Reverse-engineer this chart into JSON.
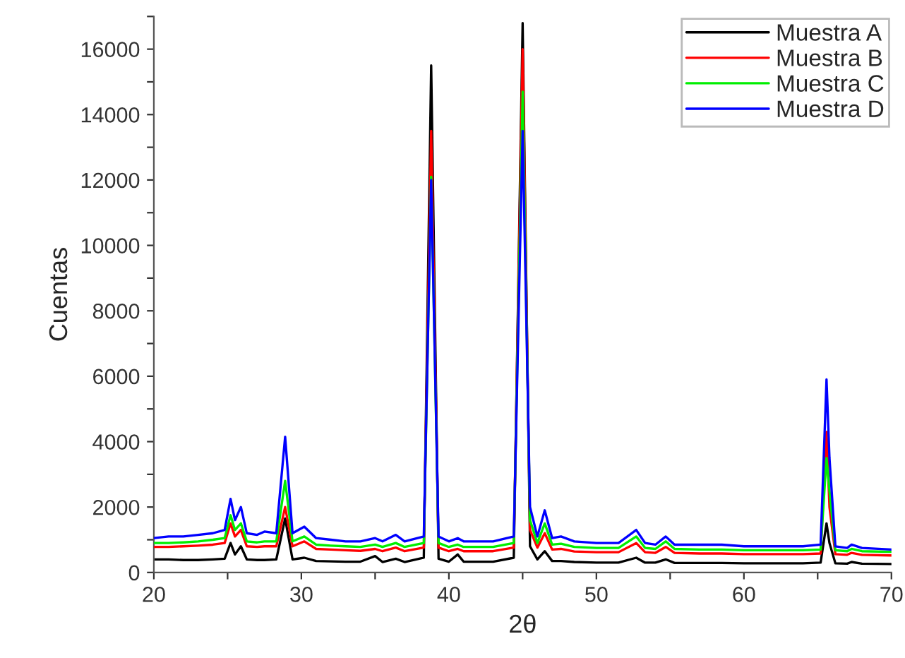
{
  "chart_data": {
    "type": "line",
    "xlabel": "2θ",
    "ylabel": "Cuentas",
    "legend": "top right",
    "grid": false,
    "line_style": "solid",
    "x": [
      20,
      21,
      22,
      23,
      24,
      24.8,
      25.2,
      25.5,
      25.9,
      26.3,
      27,
      27.5,
      28.3,
      28.9,
      29.4,
      30.2,
      31,
      32,
      33,
      34,
      35,
      35.5,
      36.4,
      37,
      38.3,
      38.8,
      39.3,
      40,
      40.6,
      41,
      42,
      43,
      44.4,
      45.0,
      45.5,
      46,
      46.5,
      47,
      47.6,
      48.5,
      50,
      51.5,
      52.7,
      53.3,
      54,
      54.7,
      55.3,
      57,
      58.5,
      60,
      62,
      64,
      65.2,
      65.6,
      65.8,
      66.2,
      67,
      67.3,
      68,
      70
    ],
    "xlim": [
      20,
      70
    ],
    "xticks": [
      20,
      {
        "value": 25,
        "label": null
      },
      30,
      {
        "value": 35,
        "label": null
      },
      40,
      {
        "value": 45,
        "label": null
      },
      50,
      {
        "value": 55,
        "label": null
      },
      60,
      {
        "value": 65,
        "label": null
      },
      70
    ],
    "ylim": [
      0,
      17000
    ],
    "yticks": [
      0,
      {
        "value": 1000,
        "label": null
      },
      2000,
      {
        "value": 3000,
        "label": null
      },
      4000,
      {
        "value": 5000,
        "label": null
      },
      6000,
      {
        "value": 7000,
        "label": null
      },
      8000,
      {
        "value": 9000,
        "label": null
      },
      10000,
      {
        "value": 11000,
        "label": null
      },
      12000,
      {
        "value": 13000,
        "label": null
      },
      14000,
      {
        "value": 15000,
        "label": null
      },
      16000,
      {
        "value": 17000,
        "label": null
      }
    ],
    "series": [
      {
        "name": "Muestra A",
        "color": "#000000",
        "values": [
          400,
          400,
          380,
          380,
          400,
          420,
          900,
          550,
          800,
          400,
          380,
          380,
          400,
          1650,
          400,
          450,
          350,
          340,
          330,
          330,
          500,
          320,
          420,
          320,
          450,
          15500,
          420,
          330,
          550,
          330,
          330,
          330,
          450,
          16800,
          800,
          400,
          650,
          350,
          350,
          320,
          300,
          300,
          450,
          300,
          300,
          400,
          290,
          290,
          290,
          280,
          280,
          280,
          300,
          1500,
          900,
          280,
          270,
          320,
          270,
          260
        ]
      },
      {
        "name": "Muestra B",
        "color": "#ff0000",
        "values": [
          780,
          780,
          800,
          820,
          850,
          900,
          1500,
          1100,
          1300,
          800,
          780,
          800,
          800,
          2000,
          800,
          950,
          720,
          700,
          680,
          660,
          720,
          650,
          760,
          650,
          760,
          13500,
          760,
          650,
          720,
          650,
          650,
          650,
          760,
          16000,
          1300,
          760,
          1200,
          700,
          720,
          640,
          620,
          620,
          900,
          620,
          600,
          780,
          600,
          580,
          580,
          560,
          560,
          560,
          580,
          4300,
          2000,
          560,
          540,
          600,
          540,
          520
        ]
      },
      {
        "name": "Muestra C",
        "color": "#00ee00",
        "values": [
          900,
          900,
          920,
          950,
          1000,
          1050,
          1750,
          1300,
          1500,
          950,
          920,
          950,
          950,
          2800,
          950,
          1100,
          850,
          820,
          800,
          780,
          850,
          780,
          900,
          780,
          900,
          12100,
          900,
          780,
          850,
          780,
          780,
          780,
          900,
          14700,
          1600,
          900,
          1500,
          850,
          880,
          780,
          750,
          750,
          1100,
          750,
          720,
          950,
          720,
          700,
          700,
          680,
          680,
          680,
          700,
          3500,
          2500,
          680,
          650,
          720,
          650,
          630
        ]
      },
      {
        "name": "Muestra D",
        "color": "#0000ff",
        "values": [
          1050,
          1100,
          1100,
          1150,
          1200,
          1300,
          2250,
          1600,
          2000,
          1200,
          1150,
          1250,
          1200,
          4150,
          1200,
          1400,
          1050,
          1000,
          950,
          950,
          1050,
          950,
          1150,
          950,
          1100,
          12000,
          1100,
          950,
          1050,
          950,
          950,
          950,
          1100,
          13500,
          2000,
          1100,
          1900,
          1050,
          1100,
          950,
          900,
          900,
          1300,
          900,
          850,
          1100,
          850,
          850,
          850,
          800,
          800,
          800,
          850,
          5900,
          3500,
          800,
          750,
          850,
          750,
          700
        ]
      }
    ]
  }
}
